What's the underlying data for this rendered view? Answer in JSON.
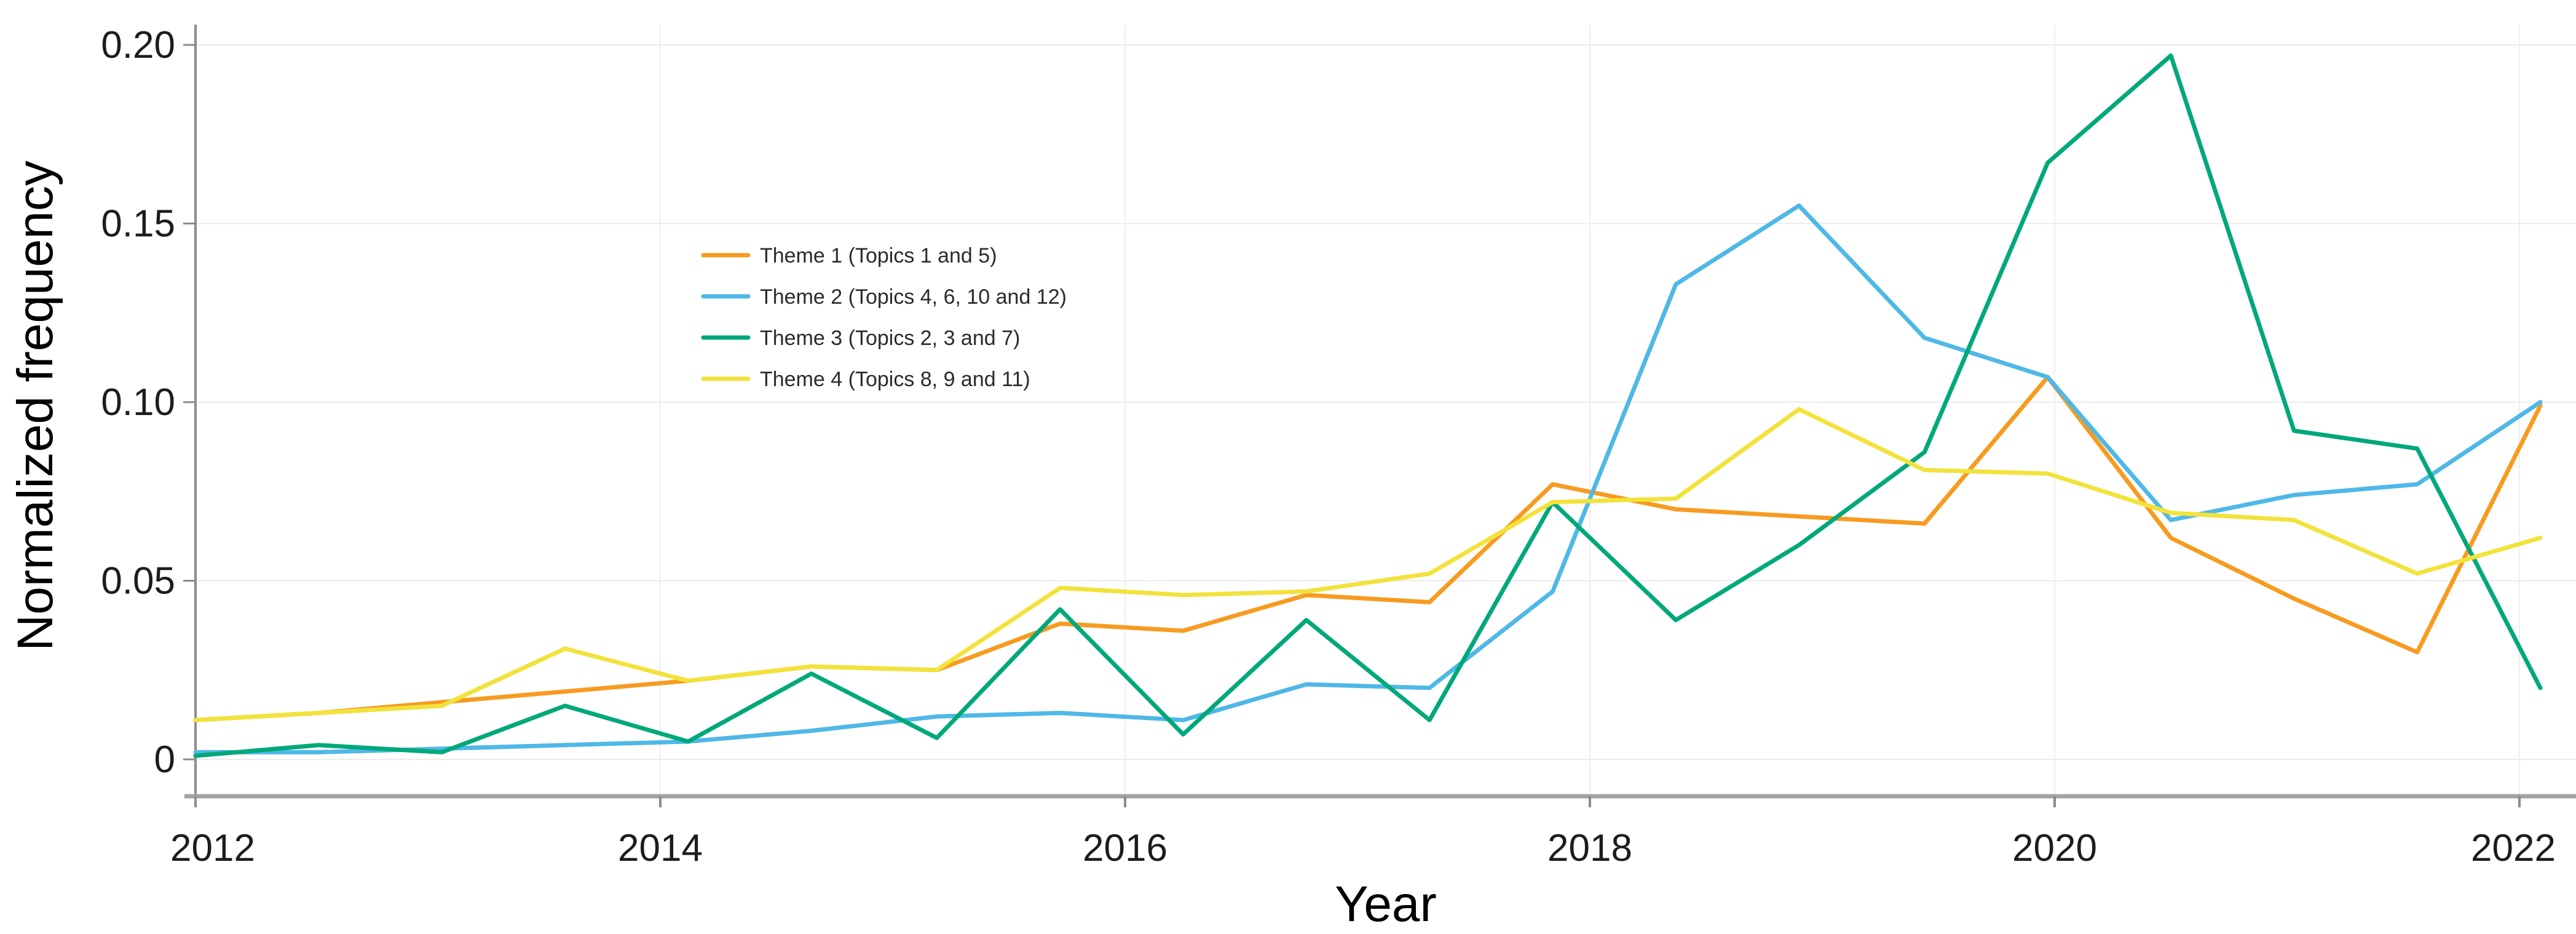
{
  "chart_data": {
    "type": "line",
    "title": "",
    "xlabel": "Year",
    "ylabel": "Normalized frequency",
    "x_ticks": [
      2012,
      2014,
      2016,
      2018,
      2020,
      2022
    ],
    "x_tick_labels": [
      "2012",
      "2014",
      "2016",
      "2018",
      "2020",
      "2022"
    ],
    "y_ticks": [
      0,
      0.05,
      0.1,
      0.15,
      0.2
    ],
    "y_tick_labels": [
      "0",
      "0.05",
      "0.10",
      "0.15",
      "0.20"
    ],
    "xlim": [
      2012,
      2022.25
    ],
    "ylim": [
      0,
      0.206
    ],
    "grid": true,
    "legend_position": "inside upper-left area",
    "x": [
      2012.0,
      2012.53,
      2013.06,
      2013.59,
      2014.12,
      2014.65,
      2015.19,
      2015.72,
      2016.25,
      2016.78,
      2017.31,
      2017.84,
      2018.37,
      2018.9,
      2019.44,
      2019.97,
      2020.5,
      2021.03,
      2021.56,
      2022.09
    ],
    "series": [
      {
        "name": "Theme 1 (Topics 1 and 5)",
        "color": "#F79B20",
        "values": [
          0.011,
          0.013,
          0.016,
          0.019,
          0.022,
          0.026,
          0.025,
          0.038,
          0.036,
          0.046,
          0.044,
          0.077,
          0.07,
          0.068,
          0.066,
          0.107,
          0.062,
          0.045,
          0.03,
          0.099
        ]
      },
      {
        "name": "Theme 2 (Topics 4, 6, 10 and 12)",
        "color": "#4FB8E7",
        "values": [
          0.002,
          0.002,
          0.003,
          0.004,
          0.005,
          0.008,
          0.012,
          0.013,
          0.011,
          0.021,
          0.02,
          0.047,
          0.133,
          0.155,
          0.118,
          0.107,
          0.067,
          0.074,
          0.077,
          0.1
        ]
      },
      {
        "name": "Theme 3 (Topics 2, 3 and 7)",
        "color": "#00A87A",
        "values": [
          0.001,
          0.004,
          0.002,
          0.015,
          0.005,
          0.024,
          0.006,
          0.042,
          0.007,
          0.039,
          0.011,
          0.072,
          0.039,
          0.06,
          0.086,
          0.167,
          0.197,
          0.092,
          0.087,
          0.02
        ]
      },
      {
        "name": "Theme 4 (Topics 8, 9 and 11)",
        "color": "#F2E23C",
        "values": [
          0.011,
          0.013,
          0.015,
          0.031,
          0.022,
          0.026,
          0.025,
          0.048,
          0.046,
          0.047,
          0.052,
          0.072,
          0.073,
          0.098,
          0.081,
          0.08,
          0.069,
          0.067,
          0.052,
          0.062
        ]
      }
    ]
  }
}
